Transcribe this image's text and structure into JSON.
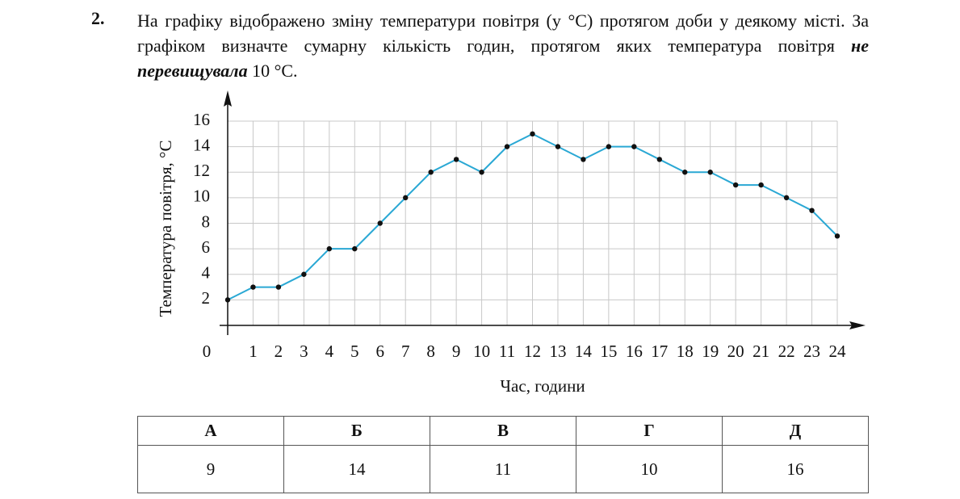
{
  "question": {
    "number": "2.",
    "text_before": "На графіку відображено зміну температури повітря (у °С) протягом доби у деякому місті. За графіком визначте сумарну кількість годин, протягом яких температура повітря",
    "emphasis": "не перевищувала",
    "text_after": "10 °С."
  },
  "chart_data": {
    "type": "line",
    "x_label": "Час, години",
    "y_label": "Температура повітря, °С",
    "x": [
      0,
      1,
      2,
      3,
      4,
      5,
      6,
      7,
      8,
      9,
      10,
      11,
      12,
      13,
      14,
      15,
      16,
      17,
      18,
      19,
      20,
      21,
      22,
      23,
      24
    ],
    "values": [
      2,
      3,
      3,
      4,
      6,
      6,
      8,
      10,
      12,
      13,
      12,
      14,
      15,
      14,
      13,
      14,
      14,
      13,
      12,
      12,
      11,
      11,
      10,
      9,
      7
    ],
    "color": "#2aa8d4",
    "xlim": [
      0,
      24
    ],
    "ylim": [
      0,
      16
    ],
    "xticks": [
      0,
      1,
      2,
      3,
      4,
      5,
      6,
      7,
      8,
      9,
      10,
      11,
      12,
      13,
      14,
      15,
      16,
      17,
      18,
      19,
      20,
      21,
      22,
      23,
      24
    ],
    "yticks": [
      2,
      4,
      6,
      8,
      10,
      12,
      14,
      16
    ],
    "grid": true
  },
  "table": {
    "headers": [
      "А",
      "Б",
      "В",
      "Г",
      "Д"
    ],
    "rows": [
      [
        "9",
        "14",
        "11",
        "10",
        "16"
      ]
    ]
  }
}
